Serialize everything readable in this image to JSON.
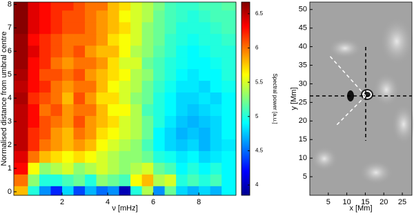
{
  "chart_data": [
    {
      "type": "heatmap",
      "x": [
        0.25,
        0.75,
        1.25,
        1.75,
        2.25,
        2.75,
        3.25,
        3.75,
        4.25,
        4.75,
        5.25,
        5.75,
        6.25,
        6.75,
        7.25,
        7.75,
        8.25,
        8.75,
        9.25
      ],
      "y": [
        0,
        0.5,
        1,
        1.5,
        2,
        2.5,
        3,
        3.5,
        4,
        4.5,
        5,
        5.5,
        6,
        6.5,
        7,
        7.5,
        8
      ],
      "values": [
        [
          5.8,
          5.0,
          4.6,
          4.3,
          4.8,
          4.4,
          4.7,
          4.5,
          4.6,
          4.0,
          5.0,
          5.4,
          4.6,
          5.2,
          4.8,
          4.7,
          4.8,
          4.7,
          4.9
        ],
        [
          6.0,
          5.3,
          5.0,
          5.0,
          5.1,
          5.2,
          5.0,
          5.3,
          5.2,
          5.1,
          5.6,
          5.8,
          5.4,
          5.5,
          5.0,
          5.1,
          5.0,
          5.1,
          4.9
        ],
        [
          6.3,
          5.6,
          5.3,
          5.4,
          5.5,
          5.3,
          5.4,
          5.5,
          5.4,
          5.3,
          5.4,
          5.5,
          5.2,
          5.1,
          4.9,
          5.0,
          4.9,
          5.0,
          4.9
        ],
        [
          6.4,
          6.0,
          5.8,
          5.7,
          5.6,
          5.7,
          5.6,
          5.5,
          5.4,
          5.3,
          5.3,
          5.2,
          5.0,
          4.95,
          4.85,
          4.9,
          4.8,
          4.85,
          4.9
        ],
        [
          6.5,
          6.2,
          6.0,
          5.9,
          5.8,
          5.9,
          5.8,
          5.6,
          5.5,
          5.4,
          5.3,
          5.1,
          4.9,
          4.8,
          4.75,
          4.8,
          4.7,
          4.8,
          4.85
        ],
        [
          6.5,
          6.2,
          6.1,
          5.9,
          5.8,
          6.0,
          5.9,
          5.7,
          5.6,
          5.5,
          5.4,
          5.2,
          4.9,
          4.8,
          4.7,
          4.75,
          4.7,
          4.8,
          4.9
        ],
        [
          6.5,
          6.3,
          6.1,
          6.0,
          5.9,
          6.1,
          5.9,
          5.8,
          5.7,
          5.5,
          5.4,
          5.2,
          5.0,
          4.85,
          4.75,
          4.7,
          4.75,
          4.8,
          4.9
        ],
        [
          6.5,
          6.3,
          6.0,
          6.1,
          5.9,
          6.0,
          6.0,
          5.8,
          5.6,
          5.6,
          5.4,
          5.1,
          5.0,
          4.9,
          4.8,
          4.75,
          4.8,
          4.85,
          4.9
        ],
        [
          6.55,
          6.2,
          6.1,
          6.0,
          5.8,
          6.1,
          5.9,
          5.7,
          5.7,
          5.5,
          5.3,
          5.2,
          5.0,
          4.9,
          4.8,
          4.8,
          4.85,
          4.8,
          4.9
        ],
        [
          6.5,
          6.3,
          6.2,
          6.0,
          5.9,
          6.0,
          6.0,
          5.8,
          5.6,
          5.5,
          5.4,
          5.2,
          5.05,
          4.95,
          4.85,
          4.85,
          4.8,
          4.9,
          4.95
        ],
        [
          6.55,
          6.3,
          6.1,
          6.1,
          6.0,
          6.1,
          5.9,
          5.8,
          5.7,
          5.6,
          5.4,
          5.3,
          5.1,
          5.0,
          4.9,
          4.85,
          4.9,
          4.9,
          5.0
        ],
        [
          6.6,
          6.3,
          6.2,
          6.0,
          5.9,
          6.0,
          6.0,
          5.9,
          5.7,
          5.5,
          5.5,
          5.2,
          5.1,
          5.0,
          4.95,
          4.9,
          4.9,
          4.95,
          5.0
        ],
        [
          6.6,
          6.4,
          6.2,
          6.1,
          6.0,
          6.1,
          5.9,
          5.8,
          5.8,
          5.6,
          5.4,
          5.3,
          5.15,
          5.05,
          4.95,
          4.9,
          4.95,
          5.0,
          5.0
        ],
        [
          6.6,
          6.3,
          6.2,
          6.1,
          6.0,
          6.0,
          6.0,
          5.9,
          5.7,
          5.6,
          5.5,
          5.3,
          5.2,
          5.05,
          5.0,
          4.95,
          5.0,
          5.0,
          5.05
        ],
        [
          6.65,
          6.4,
          6.3,
          6.2,
          6.1,
          6.1,
          6.0,
          5.9,
          5.8,
          5.7,
          5.5,
          5.3,
          5.2,
          5.1,
          5.0,
          5.0,
          5.0,
          5.05,
          5.1
        ],
        [
          6.65,
          6.4,
          6.3,
          6.2,
          6.1,
          6.1,
          6.0,
          5.9,
          5.8,
          5.6,
          5.5,
          5.4,
          5.2,
          5.1,
          5.05,
          5.0,
          5.05,
          5.1,
          5.1
        ],
        [
          6.65,
          6.4,
          6.3,
          6.2,
          6.2,
          6.1,
          6.0,
          6.0,
          5.8,
          5.7,
          5.5,
          5.4,
          5.25,
          5.1,
          5.05,
          5.05,
          5.1,
          5.1,
          5.15
        ]
      ],
      "xlim": [
        -0.12,
        9.63
      ],
      "ylim": [
        -0.15,
        8.1
      ],
      "xticks": [
        2,
        4,
        6,
        8
      ],
      "yticks": [
        0,
        1,
        2,
        3,
        4,
        5,
        6,
        7,
        8
      ],
      "xlabel": "ν [mHz]",
      "ylabel": "Normalised distance from umbral centre",
      "colormap": "jet",
      "zlim": [
        3.85,
        6.67
      ],
      "zticks": [
        4,
        4.5,
        5,
        5.5,
        6,
        6.5
      ],
      "colorbar_label": "Spectral power [a.u.]"
    },
    {
      "type": "image",
      "xlim": [
        0,
        27.6
      ],
      "ylim": [
        0,
        52
      ],
      "xticks": [
        5,
        10,
        15,
        20,
        25
      ],
      "yticks": [
        5,
        10,
        15,
        20,
        25,
        30,
        35,
        40,
        45,
        50
      ],
      "xlabel": "x [Mm]",
      "ylabel": "y [Mm]"
    }
  ]
}
